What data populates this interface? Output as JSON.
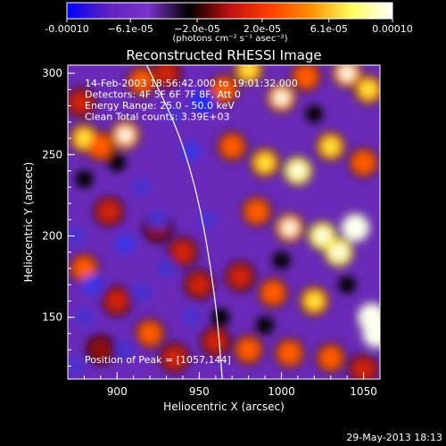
{
  "chart_data": {
    "type": "heatmap",
    "title": "Reconstructed RHESSI Image",
    "xlabel": "Heliocentric X (arcsec)",
    "ylabel": "Heliocentric Y (arcsec)",
    "xlim": [
      870,
      1060
    ],
    "ylim": [
      112,
      305
    ],
    "x_ticks": [
      900,
      950,
      1000,
      1050
    ],
    "x_tick_labels": [
      "900",
      "950",
      "1000",
      "1050"
    ],
    "y_ticks": [
      150,
      200,
      250,
      300
    ],
    "y_tick_labels": [
      "150",
      "200",
      "250",
      "300"
    ],
    "colorbar": {
      "min": -0.0001,
      "max": 0.0001,
      "tick_values": [
        -0.0001,
        -6.1e-05,
        -2e-05,
        2e-05,
        6.1e-05,
        0.0001
      ],
      "tick_labels": [
        "-0.00010",
        "−6.1e-05",
        "−2.0e-05",
        "2.0e-05",
        "6.1e-05",
        "0.00010"
      ],
      "units_text": "(photons cm⁻² s⁻¹ asec⁻²)",
      "colors": [
        "#0000ff",
        "#6020c0",
        "#7a33cc",
        "#000000",
        "#c01010",
        "#ff4000",
        "#ff9000",
        "#ffff60",
        "#ffffff"
      ]
    },
    "annotations": [
      "14-Feb-2003 18:56:42.000 to 19:01:32.000",
      "Detectors: 4F 5F 6F 7F 8F, Att 0",
      "Energy Range: 25.0 - 50.0 keV",
      "Clean    Total counts: 3.39E+03"
    ],
    "peak_label": "Position of Peak = [1057,144]",
    "peak_position": [
      1057,
      144
    ],
    "limb_curve": [
      [
        918,
        305
      ],
      [
        935,
        270
      ],
      [
        945,
        240
      ],
      [
        952,
        210
      ],
      [
        957,
        180
      ],
      [
        961,
        150
      ],
      [
        964,
        112
      ]
    ],
    "blobs": [
      {
        "x": 880,
        "y": 260,
        "v": 0.9
      },
      {
        "x": 890,
        "y": 255,
        "v": 0.8
      },
      {
        "x": 905,
        "y": 262,
        "v": 1.0
      },
      {
        "x": 878,
        "y": 282,
        "v": 0.6
      },
      {
        "x": 915,
        "y": 295,
        "v": 0.7
      },
      {
        "x": 930,
        "y": 300,
        "v": 0.5
      },
      {
        "x": 895,
        "y": 215,
        "v": 0.6
      },
      {
        "x": 880,
        "y": 180,
        "v": 0.7
      },
      {
        "x": 900,
        "y": 160,
        "v": 0.5
      },
      {
        "x": 925,
        "y": 205,
        "v": 0.4
      },
      {
        "x": 940,
        "y": 190,
        "v": 0.6
      },
      {
        "x": 950,
        "y": 170,
        "v": 0.5
      },
      {
        "x": 920,
        "y": 140,
        "v": 0.7
      },
      {
        "x": 935,
        "y": 125,
        "v": 0.6
      },
      {
        "x": 960,
        "y": 135,
        "v": 0.5
      },
      {
        "x": 890,
        "y": 130,
        "v": 0.4
      },
      {
        "x": 965,
        "y": 290,
        "v": 0.8
      },
      {
        "x": 980,
        "y": 302,
        "v": 0.9
      },
      {
        "x": 1000,
        "y": 285,
        "v": 1.0
      },
      {
        "x": 1015,
        "y": 298,
        "v": 0.8
      },
      {
        "x": 1040,
        "y": 300,
        "v": 1.0
      },
      {
        "x": 1053,
        "y": 290,
        "v": 0.9
      },
      {
        "x": 970,
        "y": 255,
        "v": 0.7
      },
      {
        "x": 990,
        "y": 245,
        "v": 0.9
      },
      {
        "x": 1010,
        "y": 240,
        "v": 1.1
      },
      {
        "x": 1030,
        "y": 255,
        "v": 0.9
      },
      {
        "x": 1050,
        "y": 245,
        "v": 0.8
      },
      {
        "x": 985,
        "y": 215,
        "v": 0.8
      },
      {
        "x": 1005,
        "y": 205,
        "v": 1.0
      },
      {
        "x": 1025,
        "y": 200,
        "v": 1.1
      },
      {
        "x": 1045,
        "y": 205,
        "v": 1.3
      },
      {
        "x": 1035,
        "y": 190,
        "v": 1.2
      },
      {
        "x": 975,
        "y": 175,
        "v": 0.6
      },
      {
        "x": 995,
        "y": 165,
        "v": 0.8
      },
      {
        "x": 1020,
        "y": 160,
        "v": 0.9
      },
      {
        "x": 1055,
        "y": 150,
        "v": 1.4
      },
      {
        "x": 1058,
        "y": 140,
        "v": 1.5
      },
      {
        "x": 980,
        "y": 130,
        "v": 0.7
      },
      {
        "x": 1005,
        "y": 128,
        "v": 0.8
      },
      {
        "x": 1030,
        "y": 125,
        "v": 0.7
      },
      {
        "x": 1050,
        "y": 118,
        "v": 0.6
      },
      {
        "x": 935,
        "y": 275,
        "v": -0.6
      },
      {
        "x": 952,
        "y": 282,
        "v": -1.2
      },
      {
        "x": 945,
        "y": 252,
        "v": -0.7
      },
      {
        "x": 915,
        "y": 230,
        "v": -0.5
      },
      {
        "x": 925,
        "y": 210,
        "v": -0.6
      },
      {
        "x": 905,
        "y": 195,
        "v": -0.7
      },
      {
        "x": 875,
        "y": 200,
        "v": -0.6
      },
      {
        "x": 885,
        "y": 170,
        "v": -0.8
      },
      {
        "x": 880,
        "y": 150,
        "v": -0.6
      },
      {
        "x": 915,
        "y": 165,
        "v": -0.6
      },
      {
        "x": 930,
        "y": 180,
        "v": -0.5
      },
      {
        "x": 905,
        "y": 130,
        "v": -0.5
      },
      {
        "x": 945,
        "y": 150,
        "v": -0.5
      },
      {
        "x": 955,
        "y": 210,
        "v": -0.6
      },
      {
        "x": 875,
        "y": 120,
        "v": -0.5
      },
      {
        "x": 963,
        "y": 150,
        "v": -0.4
      },
      {
        "x": 900,
        "y": 245,
        "v": -0.3
      },
      {
        "x": 880,
        "y": 235,
        "v": -0.4
      },
      {
        "x": 1000,
        "y": 185,
        "v": -0.3
      },
      {
        "x": 990,
        "y": 145,
        "v": -0.4
      },
      {
        "x": 1040,
        "y": 170,
        "v": -0.3
      },
      {
        "x": 1020,
        "y": 275,
        "v": -0.3
      }
    ]
  },
  "footer": {
    "timestamp": "29-May-2013 18:13"
  }
}
